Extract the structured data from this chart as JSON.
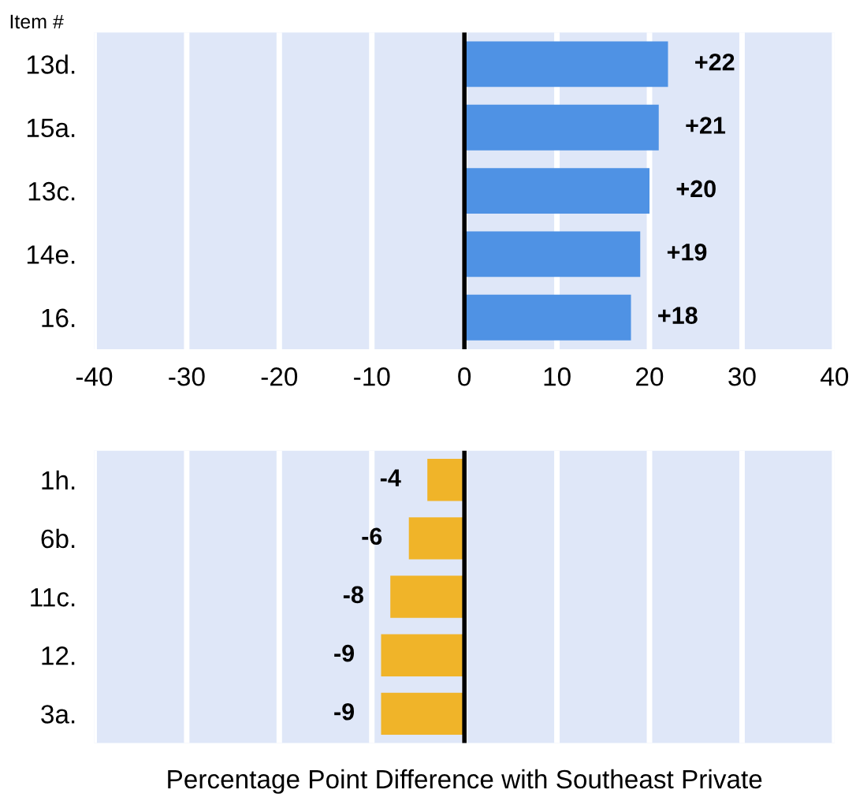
{
  "chart_data": [
    {
      "type": "bar",
      "orientation": "horizontal",
      "ylabel": "Item #",
      "categories": [
        "13d.",
        "15a.",
        "13c.",
        "14e.",
        "16."
      ],
      "series": [
        {
          "color": "#4f92e4",
          "values": [
            22,
            21,
            20,
            19,
            18
          ],
          "value_labels": [
            "+22",
            "+21",
            "+20",
            "+19",
            "+18"
          ]
        }
      ],
      "xlim": [
        -40,
        40
      ],
      "xticks": [
        -40,
        -30,
        -20,
        -10,
        0,
        10,
        20,
        30,
        40
      ],
      "grid": "x",
      "legend": false,
      "ref_lines": [
        {
          "axis": "x",
          "value": 0,
          "color": "#000000"
        }
      ]
    },
    {
      "type": "bar",
      "orientation": "horizontal",
      "xlabel": "Percentage Point Difference with Southeast Private",
      "categories": [
        "1h.",
        "6b.",
        "11c.",
        "12.",
        "3a."
      ],
      "series": [
        {
          "color": "#f0b429",
          "values": [
            -4,
            -6,
            -8,
            -9,
            -9
          ],
          "value_labels": [
            "-4",
            "-6",
            "-8",
            "-9",
            "-9"
          ]
        }
      ],
      "xlim": [
        -40,
        40
      ],
      "xticks": [
        -40,
        -30,
        -20,
        -10,
        0,
        10,
        20,
        30,
        40
      ],
      "grid": "x",
      "tick_labels": "y",
      "legend": false,
      "ref_lines": [
        {
          "axis": "x",
          "value": 0,
          "color": "#000000"
        }
      ]
    }
  ]
}
